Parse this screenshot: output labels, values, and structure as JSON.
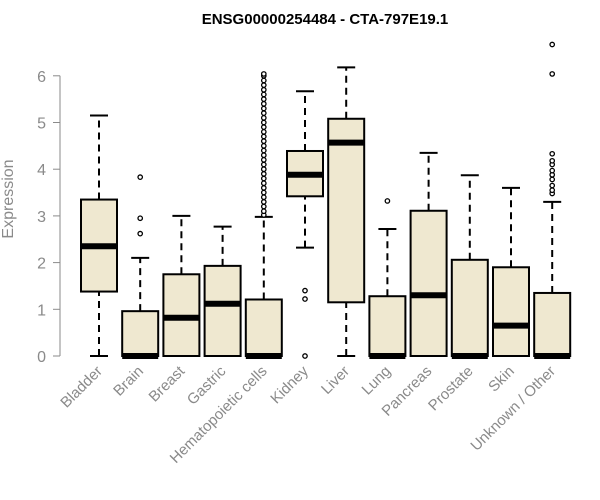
{
  "chart_data": {
    "type": "boxplot",
    "title": "ENSG00000254484 - CTA-797E19.1",
    "xlabel": "",
    "ylabel": "Expression",
    "ylim": [
      0,
      6.8
    ],
    "yticks": [
      0,
      1,
      2,
      3,
      4,
      5,
      6
    ],
    "box_fill": "#efe8d0",
    "median_color": "#000000",
    "categories": [
      "Bladder",
      "Brain",
      "Breast",
      "Gastric",
      "Hematopoietic cells",
      "Kidney",
      "Liver",
      "Lung",
      "Pancreas",
      "Prostate",
      "Skin",
      "Unknown / Other"
    ],
    "boxes": [
      {
        "category": "Bladder",
        "whisker_low": 0,
        "q1": 1.38,
        "median": 2.35,
        "q3": 3.35,
        "whisker_high": 5.15,
        "outliers": []
      },
      {
        "category": "Brain",
        "whisker_low": 0,
        "q1": 0,
        "median": 0,
        "q3": 0.96,
        "whisker_high": 2.1,
        "outliers": [
          2.62,
          2.95,
          3.83
        ]
      },
      {
        "category": "Breast",
        "whisker_low": 0,
        "q1": 0,
        "median": 0.82,
        "q3": 1.75,
        "whisker_high": 3.0,
        "outliers": []
      },
      {
        "category": "Gastric",
        "whisker_low": 0,
        "q1": 0,
        "median": 1.12,
        "q3": 1.93,
        "whisker_high": 2.77,
        "outliers": []
      },
      {
        "category": "Hematopoietic cells",
        "whisker_low": 0,
        "q1": 0,
        "median": 0,
        "q3": 1.21,
        "whisker_high": 2.98,
        "outliers": [
          3.02,
          3.1,
          3.2,
          3.3,
          3.4,
          3.5,
          3.6,
          3.7,
          3.8,
          3.9,
          4.0,
          4.1,
          4.2,
          4.3,
          4.4,
          4.5,
          4.6,
          4.7,
          4.8,
          4.9,
          5.0,
          5.1,
          5.2,
          5.3,
          5.4,
          5.5,
          5.6,
          5.7,
          5.8,
          5.9,
          6.0,
          6.04
        ]
      },
      {
        "category": "Kidney",
        "whisker_low": 2.32,
        "q1": 3.42,
        "median": 3.88,
        "q3": 4.39,
        "whisker_high": 5.67,
        "outliers": [
          0,
          1.22,
          1.4
        ]
      },
      {
        "category": "Liver",
        "whisker_low": 0,
        "q1": 1.15,
        "median": 4.57,
        "q3": 5.08,
        "whisker_high": 6.18,
        "outliers": []
      },
      {
        "category": "Lung",
        "whisker_low": 0,
        "q1": 0,
        "median": 0,
        "q3": 1.28,
        "whisker_high": 2.72,
        "outliers": [
          3.32
        ]
      },
      {
        "category": "Pancreas",
        "whisker_low": 0,
        "q1": 0,
        "median": 1.3,
        "q3": 3.11,
        "whisker_high": 4.35,
        "outliers": []
      },
      {
        "category": "Prostate",
        "whisker_low": 0,
        "q1": 0,
        "median": 0,
        "q3": 2.06,
        "whisker_high": 3.87,
        "outliers": []
      },
      {
        "category": "Skin",
        "whisker_low": 0,
        "q1": 0,
        "median": 0.65,
        "q3": 1.9,
        "whisker_high": 3.6,
        "outliers": []
      },
      {
        "category": "Unknown / Other",
        "whisker_low": 0,
        "q1": 0,
        "median": 0,
        "q3": 1.35,
        "whisker_high": 3.3,
        "outliers": [
          3.48,
          3.55,
          3.65,
          3.78,
          3.88,
          3.97,
          4.1,
          4.18,
          4.33,
          6.04,
          6.67
        ]
      }
    ]
  }
}
